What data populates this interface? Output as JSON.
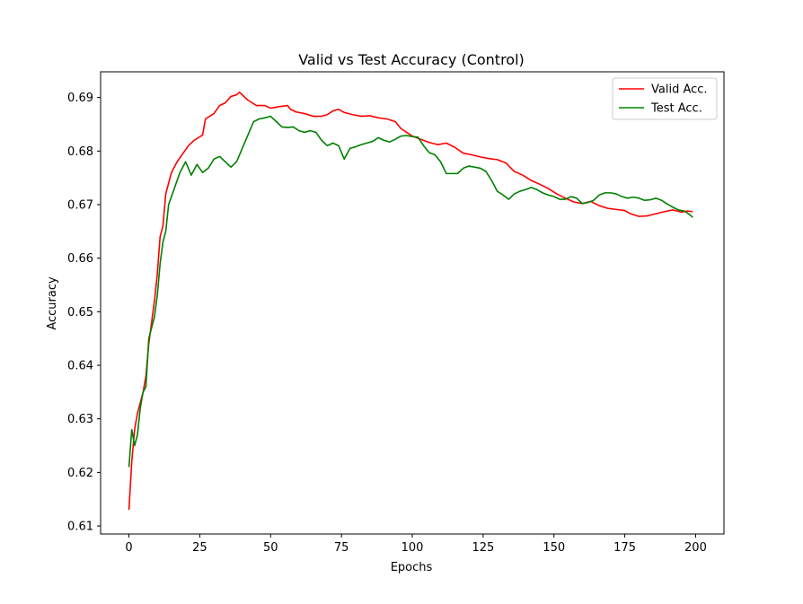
{
  "chart_data": {
    "type": "line",
    "title": "Valid vs Test Accuracy (Control)",
    "xlabel": "Epochs",
    "ylabel": "Accuracy",
    "xlim": [
      -10,
      210
    ],
    "ylim": [
      0.6085,
      0.6948
    ],
    "xticks": [
      0,
      25,
      50,
      75,
      100,
      125,
      150,
      175,
      200
    ],
    "yticks": [
      0.61,
      0.62,
      0.63,
      0.64,
      0.65,
      0.66,
      0.67,
      0.68,
      0.69
    ],
    "x_tick_labels": [
      "0",
      "25",
      "50",
      "75",
      "100",
      "125",
      "150",
      "175",
      "200"
    ],
    "y_tick_labels": [
      "0.61",
      "0.62",
      "0.63",
      "0.64",
      "0.65",
      "0.66",
      "0.67",
      "0.68",
      "0.69"
    ],
    "grid": false,
    "legend_position": "top-right",
    "series": [
      {
        "name": "Valid Acc.",
        "color": "#ff0000",
        "points": [
          [
            0,
            0.613
          ],
          [
            1,
            0.622
          ],
          [
            2,
            0.628
          ],
          [
            3,
            0.631
          ],
          [
            4,
            0.633
          ],
          [
            5,
            0.635
          ],
          [
            6,
            0.638
          ],
          [
            7,
            0.644
          ],
          [
            8,
            0.648
          ],
          [
            9,
            0.652
          ],
          [
            10,
            0.657
          ],
          [
            11,
            0.664
          ],
          [
            12,
            0.666
          ],
          [
            13,
            0.672
          ],
          [
            14,
            0.674
          ],
          [
            15,
            0.676
          ],
          [
            17,
            0.678
          ],
          [
            19,
            0.6795
          ],
          [
            21,
            0.681
          ],
          [
            23,
            0.682
          ],
          [
            26,
            0.683
          ],
          [
            27,
            0.686
          ],
          [
            30,
            0.687
          ],
          [
            32,
            0.6885
          ],
          [
            34,
            0.689
          ],
          [
            36,
            0.6902
          ],
          [
            38,
            0.6905
          ],
          [
            39,
            0.691
          ],
          [
            40,
            0.6905
          ],
          [
            42,
            0.6895
          ],
          [
            45,
            0.6885
          ],
          [
            48,
            0.6885
          ],
          [
            50,
            0.688
          ],
          [
            53,
            0.6883
          ],
          [
            56,
            0.6885
          ],
          [
            57,
            0.6878
          ],
          [
            59,
            0.6873
          ],
          [
            62,
            0.687
          ],
          [
            65,
            0.6865
          ],
          [
            68,
            0.6865
          ],
          [
            70,
            0.6868
          ],
          [
            72,
            0.6875
          ],
          [
            74,
            0.6878
          ],
          [
            76,
            0.6872
          ],
          [
            79,
            0.6868
          ],
          [
            82,
            0.6865
          ],
          [
            85,
            0.6866
          ],
          [
            88,
            0.6862
          ],
          [
            91,
            0.686
          ],
          [
            94,
            0.6855
          ],
          [
            96,
            0.6842
          ],
          [
            98,
            0.6835
          ],
          [
            100,
            0.6828
          ],
          [
            103,
            0.6822
          ],
          [
            106,
            0.6816
          ],
          [
            109,
            0.6812
          ],
          [
            112,
            0.6815
          ],
          [
            115,
            0.6807
          ],
          [
            118,
            0.6796
          ],
          [
            121,
            0.6793
          ],
          [
            124,
            0.6789
          ],
          [
            127,
            0.6786
          ],
          [
            130,
            0.6784
          ],
          [
            133,
            0.6778
          ],
          [
            136,
            0.6762
          ],
          [
            139,
            0.6755
          ],
          [
            142,
            0.6745
          ],
          [
            145,
            0.6738
          ],
          [
            148,
            0.673
          ],
          [
            151,
            0.672
          ],
          [
            154,
            0.6712
          ],
          [
            157,
            0.6705
          ],
          [
            160,
            0.6702
          ],
          [
            163,
            0.6706
          ],
          [
            166,
            0.6698
          ],
          [
            169,
            0.6693
          ],
          [
            172,
            0.6691
          ],
          [
            175,
            0.6689
          ],
          [
            177,
            0.6683
          ],
          [
            180,
            0.6678
          ],
          [
            183,
            0.6679
          ],
          [
            186,
            0.6683
          ],
          [
            189,
            0.6687
          ],
          [
            192,
            0.669
          ],
          [
            195,
            0.6686
          ],
          [
            197,
            0.6688
          ],
          [
            199,
            0.6687
          ]
        ]
      },
      {
        "name": "Test Acc.",
        "color": "#008000",
        "points": [
          [
            0,
            0.621
          ],
          [
            1,
            0.628
          ],
          [
            2,
            0.625
          ],
          [
            3,
            0.627
          ],
          [
            4,
            0.632
          ],
          [
            5,
            0.635
          ],
          [
            6,
            0.636
          ],
          [
            7,
            0.645
          ],
          [
            8,
            0.647
          ],
          [
            9,
            0.649
          ],
          [
            10,
            0.653
          ],
          [
            11,
            0.659
          ],
          [
            12,
            0.663
          ],
          [
            13,
            0.665
          ],
          [
            14,
            0.67
          ],
          [
            16,
            0.673
          ],
          [
            18,
            0.676
          ],
          [
            20,
            0.678
          ],
          [
            22,
            0.6755
          ],
          [
            24,
            0.6775
          ],
          [
            26,
            0.676
          ],
          [
            28,
            0.6768
          ],
          [
            30,
            0.6785
          ],
          [
            32,
            0.679
          ],
          [
            34,
            0.678
          ],
          [
            36,
            0.677
          ],
          [
            38,
            0.678
          ],
          [
            40,
            0.6805
          ],
          [
            42,
            0.683
          ],
          [
            44,
            0.6855
          ],
          [
            46,
            0.686
          ],
          [
            48,
            0.6862
          ],
          [
            50,
            0.6865
          ],
          [
            52,
            0.6855
          ],
          [
            54,
            0.6845
          ],
          [
            56,
            0.6844
          ],
          [
            58,
            0.6845
          ],
          [
            60,
            0.6838
          ],
          [
            62,
            0.6835
          ],
          [
            64,
            0.6838
          ],
          [
            66,
            0.6835
          ],
          [
            68,
            0.682
          ],
          [
            70,
            0.681
          ],
          [
            72,
            0.6815
          ],
          [
            74,
            0.681
          ],
          [
            76,
            0.6785
          ],
          [
            78,
            0.6805
          ],
          [
            80,
            0.6808
          ],
          [
            82,
            0.6812
          ],
          [
            84,
            0.6815
          ],
          [
            86,
            0.6818
          ],
          [
            88,
            0.6825
          ],
          [
            90,
            0.682
          ],
          [
            92,
            0.6817
          ],
          [
            94,
            0.6822
          ],
          [
            96,
            0.6828
          ],
          [
            98,
            0.6829
          ],
          [
            100,
            0.6827
          ],
          [
            102,
            0.6826
          ],
          [
            104,
            0.681
          ],
          [
            106,
            0.6797
          ],
          [
            108,
            0.6793
          ],
          [
            110,
            0.678
          ],
          [
            112,
            0.6758
          ],
          [
            114,
            0.6758
          ],
          [
            116,
            0.6758
          ],
          [
            118,
            0.6768
          ],
          [
            120,
            0.6772
          ],
          [
            122,
            0.677
          ],
          [
            124,
            0.6768
          ],
          [
            126,
            0.6762
          ],
          [
            128,
            0.6745
          ],
          [
            130,
            0.6725
          ],
          [
            132,
            0.6718
          ],
          [
            134,
            0.671
          ],
          [
            136,
            0.672
          ],
          [
            138,
            0.6725
          ],
          [
            140,
            0.6728
          ],
          [
            142,
            0.6732
          ],
          [
            144,
            0.6728
          ],
          [
            146,
            0.6722
          ],
          [
            148,
            0.6718
          ],
          [
            150,
            0.6715
          ],
          [
            152,
            0.671
          ],
          [
            154,
            0.671
          ],
          [
            156,
            0.6715
          ],
          [
            158,
            0.6712
          ],
          [
            160,
            0.6702
          ],
          [
            162,
            0.6704
          ],
          [
            164,
            0.6708
          ],
          [
            166,
            0.6718
          ],
          [
            168,
            0.6722
          ],
          [
            170,
            0.6722
          ],
          [
            172,
            0.672
          ],
          [
            174,
            0.6715
          ],
          [
            176,
            0.6712
          ],
          [
            178,
            0.6714
          ],
          [
            180,
            0.6712
          ],
          [
            182,
            0.6708
          ],
          [
            184,
            0.6709
          ],
          [
            186,
            0.6712
          ],
          [
            188,
            0.6708
          ],
          [
            190,
            0.6701
          ],
          [
            192,
            0.6695
          ],
          [
            194,
            0.669
          ],
          [
            196,
            0.6688
          ],
          [
            198,
            0.6681
          ],
          [
            199,
            0.6676
          ]
        ]
      }
    ]
  }
}
